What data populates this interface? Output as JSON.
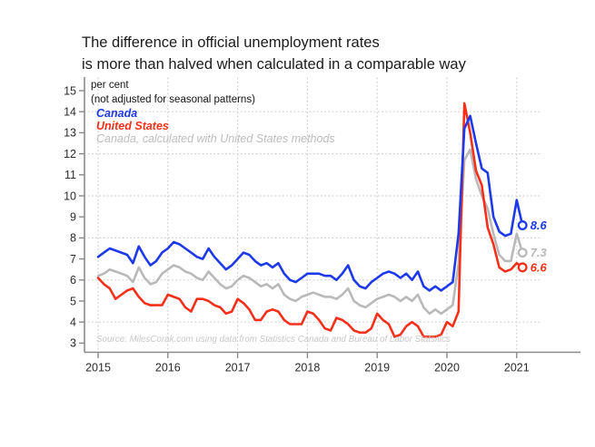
{
  "title": {
    "line1": "The difference in official unemployment rates",
    "line2": "is more than halved when calculated in a comparable way"
  },
  "axis_note": {
    "line1": "per cent",
    "line2": "(not adjusted for seasonal patterns)"
  },
  "legend": [
    {
      "id": "canada",
      "label": "Canada",
      "color": "#1d39e8",
      "bold": true
    },
    {
      "id": "united-states",
      "label": "United States",
      "color": "#f5301a",
      "bold": true
    },
    {
      "id": "canada-us-methods",
      "label": "Canada, calculated with United States methods",
      "color": "#bdbdbd",
      "bold": false
    }
  ],
  "source": "Source: MilesCorak.com using data from Statistics Canada and Bureau of Labor Statsitics",
  "chart_data": {
    "type": "line",
    "x_unit": "month",
    "x_start": "2015-01",
    "x_end": "2021-02",
    "x_tick_years": [
      2015,
      2016,
      2017,
      2018,
      2019,
      2020,
      2021
    ],
    "ylim": [
      3,
      15
    ],
    "y_ticks": [
      3,
      4,
      5,
      6,
      7,
      8,
      9,
      10,
      11,
      12,
      13,
      14,
      15
    ],
    "y_gridlines": [
      4,
      6,
      8,
      10,
      12,
      14
    ],
    "grid": "dotted",
    "legend_position": "top-left",
    "series": [
      {
        "name": "Canada",
        "color": "#1d39e8",
        "end_label": "8.6",
        "values": [
          7.1,
          7.3,
          7.5,
          7.4,
          7.3,
          7.2,
          6.8,
          7.6,
          7.1,
          6.7,
          6.9,
          7.3,
          7.5,
          7.8,
          7.7,
          7.5,
          7.3,
          7.1,
          7.0,
          7.5,
          7.1,
          6.8,
          6.5,
          6.7,
          7.0,
          7.3,
          7.2,
          6.9,
          6.7,
          6.8,
          6.6,
          6.8,
          6.3,
          6.0,
          5.9,
          6.1,
          6.3,
          6.3,
          6.3,
          6.2,
          6.2,
          6.0,
          6.3,
          6.7,
          6.0,
          5.7,
          5.6,
          5.9,
          6.1,
          6.3,
          6.4,
          6.3,
          6.1,
          6.3,
          6.0,
          6.4,
          5.7,
          5.5,
          5.7,
          5.5,
          5.7,
          5.9,
          8.2,
          13.2,
          13.8,
          12.5,
          11.3,
          11.1,
          9.0,
          8.3,
          8.1,
          8.2,
          9.8,
          8.6
        ]
      },
      {
        "name": "United States",
        "color": "#f5301a",
        "end_label": "6.6",
        "values": [
          6.1,
          5.8,
          5.6,
          5.1,
          5.3,
          5.5,
          5.6,
          5.2,
          4.9,
          4.8,
          4.8,
          4.8,
          5.3,
          5.2,
          5.1,
          4.7,
          4.5,
          5.1,
          5.1,
          5.0,
          4.8,
          4.7,
          4.4,
          4.5,
          5.1,
          4.9,
          4.6,
          4.1,
          4.1,
          4.5,
          4.6,
          4.5,
          4.1,
          3.9,
          3.9,
          3.9,
          4.5,
          4.4,
          4.1,
          3.7,
          3.6,
          4.2,
          4.1,
          3.9,
          3.6,
          3.5,
          3.5,
          3.7,
          4.4,
          4.1,
          3.9,
          3.3,
          3.4,
          3.8,
          4.0,
          3.8,
          3.3,
          3.3,
          3.3,
          3.4,
          4.0,
          3.8,
          4.5,
          14.4,
          13.0,
          11.2,
          10.5,
          8.5,
          7.7,
          6.6,
          6.4,
          6.5,
          6.8,
          6.6
        ]
      },
      {
        "name": "Canada, calculated with United States methods",
        "color": "#b9b9b9",
        "end_label": "7.3",
        "values": [
          6.2,
          6.3,
          6.5,
          6.4,
          6.3,
          6.2,
          5.9,
          6.6,
          6.1,
          5.8,
          5.9,
          6.3,
          6.5,
          6.7,
          6.6,
          6.4,
          6.3,
          6.1,
          6.0,
          6.4,
          6.1,
          5.8,
          5.6,
          5.7,
          6.0,
          6.2,
          6.1,
          5.9,
          5.7,
          5.8,
          5.6,
          5.8,
          5.3,
          5.1,
          5.0,
          5.2,
          5.3,
          5.4,
          5.3,
          5.2,
          5.2,
          5.1,
          5.3,
          5.6,
          5.0,
          4.8,
          4.7,
          4.9,
          5.1,
          5.2,
          5.3,
          5.2,
          5.0,
          5.2,
          5.0,
          5.3,
          4.7,
          4.4,
          4.6,
          4.4,
          4.6,
          4.8,
          6.8,
          11.7,
          12.2,
          10.8,
          10.0,
          9.4,
          8.2,
          7.2,
          6.9,
          6.9,
          8.2,
          7.3
        ]
      }
    ]
  }
}
